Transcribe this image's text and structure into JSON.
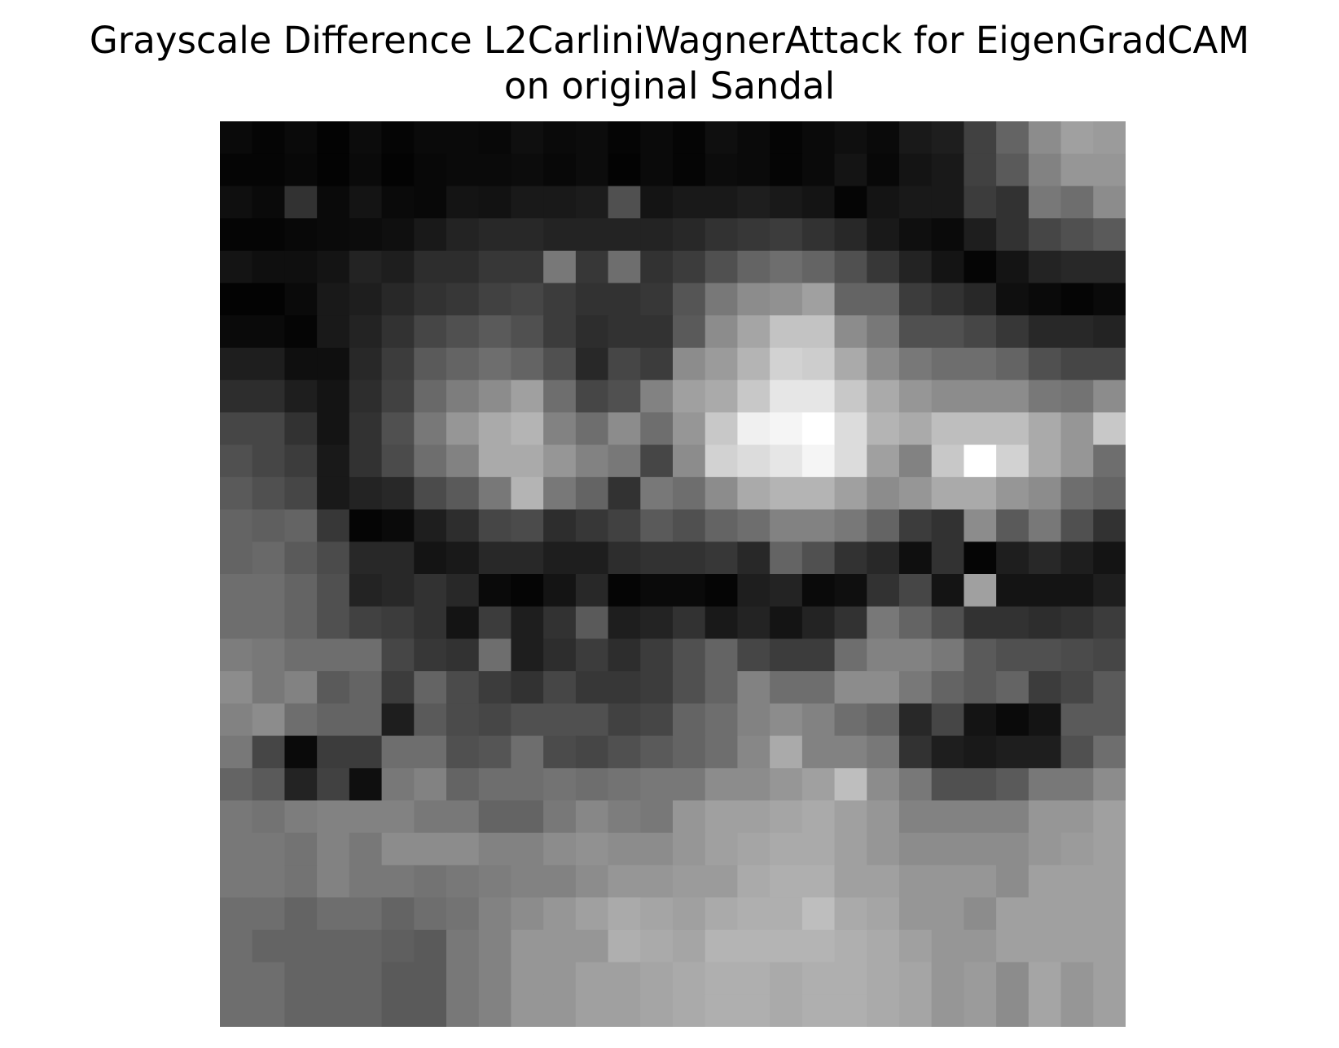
{
  "chart_data": {
    "type": "heatmap",
    "title_lines": [
      "Grayscale Difference L2CarliniWagnerAttack for EigenGradCAM",
      "on original Sandal"
    ],
    "colormap": "gray",
    "value_range": [
      0,
      255
    ],
    "axes": "off",
    "rows": 28,
    "cols": 28,
    "values": [
      [
        10,
        5,
        10,
        3,
        12,
        5,
        10,
        10,
        8,
        15,
        10,
        12,
        5,
        10,
        5,
        15,
        10,
        5,
        10,
        15,
        10,
        25,
        30,
        65,
        100,
        140,
        160,
        155
      ],
      [
        5,
        5,
        8,
        3,
        10,
        3,
        8,
        10,
        10,
        12,
        8,
        12,
        3,
        10,
        5,
        12,
        10,
        5,
        10,
        20,
        8,
        20,
        25,
        65,
        90,
        130,
        150,
        150
      ],
      [
        15,
        10,
        50,
        10,
        20,
        10,
        8,
        20,
        18,
        25,
        25,
        28,
        80,
        20,
        25,
        25,
        30,
        25,
        20,
        5,
        20,
        25,
        25,
        60,
        50,
        120,
        110,
        140
      ],
      [
        5,
        5,
        8,
        10,
        12,
        15,
        25,
        35,
        40,
        40,
        35,
        35,
        35,
        35,
        40,
        50,
        55,
        60,
        50,
        40,
        25,
        15,
        10,
        30,
        50,
        70,
        80,
        90
      ],
      [
        20,
        15,
        15,
        20,
        35,
        30,
        45,
        45,
        55,
        55,
        120,
        55,
        110,
        50,
        60,
        80,
        100,
        110,
        100,
        80,
        55,
        35,
        20,
        5,
        20,
        35,
        40,
        40
      ],
      [
        3,
        3,
        10,
        25,
        30,
        40,
        50,
        55,
        65,
        70,
        60,
        50,
        50,
        55,
        85,
        120,
        140,
        145,
        160,
        100,
        100,
        60,
        50,
        40,
        15,
        10,
        5,
        10
      ],
      [
        10,
        10,
        5,
        25,
        35,
        50,
        70,
        80,
        90,
        80,
        60,
        45,
        50,
        50,
        90,
        140,
        165,
        195,
        195,
        140,
        120,
        80,
        80,
        70,
        55,
        40,
        40,
        35
      ],
      [
        30,
        30,
        15,
        15,
        40,
        60,
        90,
        100,
        110,
        100,
        80,
        40,
        70,
        60,
        140,
        155,
        180,
        210,
        205,
        170,
        140,
        120,
        110,
        110,
        100,
        80,
        70,
        70
      ],
      [
        45,
        45,
        30,
        20,
        45,
        65,
        105,
        125,
        140,
        160,
        110,
        70,
        80,
        130,
        160,
        170,
        200,
        230,
        230,
        200,
        170,
        150,
        140,
        140,
        140,
        120,
        115,
        140
      ],
      [
        70,
        70,
        50,
        20,
        50,
        80,
        120,
        150,
        170,
        180,
        130,
        110,
        140,
        110,
        150,
        200,
        240,
        245,
        255,
        220,
        180,
        170,
        190,
        190,
        190,
        170,
        150,
        200
      ],
      [
        80,
        70,
        60,
        25,
        50,
        75,
        110,
        130,
        170,
        170,
        150,
        130,
        120,
        70,
        140,
        210,
        220,
        230,
        245,
        220,
        160,
        130,
        200,
        255,
        210,
        170,
        150,
        110
      ],
      [
        90,
        80,
        70,
        25,
        35,
        40,
        75,
        90,
        120,
        180,
        120,
        100,
        50,
        120,
        110,
        140,
        170,
        180,
        180,
        160,
        140,
        150,
        170,
        170,
        150,
        140,
        110,
        100
      ],
      [
        100,
        95,
        100,
        55,
        5,
        10,
        30,
        45,
        70,
        75,
        45,
        55,
        65,
        90,
        80,
        100,
        110,
        130,
        130,
        120,
        100,
        60,
        50,
        140,
        90,
        120,
        80,
        50
      ],
      [
        100,
        105,
        90,
        75,
        40,
        40,
        20,
        25,
        40,
        40,
        30,
        30,
        45,
        50,
        50,
        55,
        40,
        100,
        80,
        50,
        40,
        15,
        50,
        5,
        30,
        40,
        30,
        20
      ],
      [
        110,
        110,
        100,
        80,
        35,
        40,
        50,
        40,
        10,
        5,
        20,
        40,
        5,
        10,
        10,
        5,
        30,
        35,
        10,
        15,
        50,
        70,
        20,
        160,
        20,
        20,
        20,
        30
      ],
      [
        110,
        110,
        100,
        80,
        65,
        60,
        50,
        20,
        60,
        30,
        50,
        90,
        30,
        35,
        50,
        25,
        35,
        20,
        35,
        50,
        120,
        100,
        80,
        50,
        50,
        45,
        50,
        60
      ],
      [
        125,
        120,
        110,
        110,
        110,
        70,
        55,
        50,
        110,
        30,
        45,
        60,
        45,
        60,
        80,
        100,
        70,
        60,
        60,
        110,
        130,
        130,
        120,
        90,
        80,
        80,
        75,
        70
      ],
      [
        140,
        120,
        130,
        90,
        100,
        60,
        100,
        75,
        60,
        50,
        70,
        55,
        55,
        60,
        80,
        100,
        130,
        110,
        110,
        140,
        140,
        120,
        100,
        90,
        100,
        60,
        70,
        90
      ],
      [
        130,
        140,
        110,
        100,
        100,
        30,
        90,
        75,
        70,
        80,
        80,
        80,
        65,
        70,
        100,
        110,
        130,
        140,
        130,
        110,
        100,
        40,
        70,
        20,
        10,
        20,
        90,
        90
      ],
      [
        120,
        70,
        10,
        60,
        60,
        110,
        110,
        80,
        85,
        110,
        75,
        70,
        80,
        90,
        100,
        110,
        135,
        170,
        130,
        130,
        120,
        50,
        30,
        25,
        30,
        30,
        80,
        110
      ],
      [
        100,
        90,
        35,
        65,
        15,
        120,
        130,
        100,
        110,
        110,
        115,
        110,
        115,
        120,
        120,
        140,
        140,
        150,
        160,
        190,
        140,
        120,
        80,
        80,
        90,
        120,
        120,
        140
      ],
      [
        120,
        115,
        125,
        130,
        130,
        130,
        120,
        120,
        100,
        100,
        120,
        135,
        125,
        120,
        150,
        160,
        160,
        165,
        170,
        160,
        150,
        130,
        130,
        130,
        130,
        150,
        150,
        160
      ],
      [
        120,
        120,
        115,
        130,
        120,
        140,
        140,
        140,
        130,
        130,
        140,
        145,
        140,
        140,
        150,
        160,
        165,
        170,
        170,
        160,
        150,
        140,
        140,
        140,
        140,
        150,
        155,
        160
      ],
      [
        120,
        120,
        115,
        130,
        120,
        120,
        115,
        120,
        125,
        130,
        130,
        140,
        150,
        150,
        155,
        155,
        170,
        175,
        175,
        160,
        160,
        150,
        150,
        150,
        140,
        160,
        160,
        160
      ],
      [
        110,
        110,
        100,
        110,
        110,
        100,
        110,
        115,
        130,
        140,
        150,
        160,
        170,
        165,
        160,
        170,
        175,
        175,
        190,
        170,
        165,
        150,
        150,
        140,
        160,
        160,
        160,
        160
      ],
      [
        110,
        100,
        100,
        100,
        100,
        95,
        90,
        120,
        130,
        150,
        150,
        150,
        175,
        170,
        165,
        180,
        180,
        180,
        180,
        175,
        170,
        160,
        150,
        150,
        160,
        160,
        160,
        160
      ],
      [
        110,
        110,
        100,
        100,
        100,
        90,
        90,
        120,
        130,
        150,
        150,
        160,
        160,
        165,
        170,
        175,
        175,
        170,
        175,
        175,
        170,
        165,
        150,
        155,
        140,
        165,
        150,
        160
      ],
      [
        110,
        110,
        100,
        100,
        100,
        90,
        90,
        120,
        130,
        150,
        150,
        160,
        160,
        165,
        170,
        175,
        175,
        170,
        175,
        175,
        170,
        165,
        150,
        155,
        140,
        165,
        150,
        160
      ]
    ]
  }
}
